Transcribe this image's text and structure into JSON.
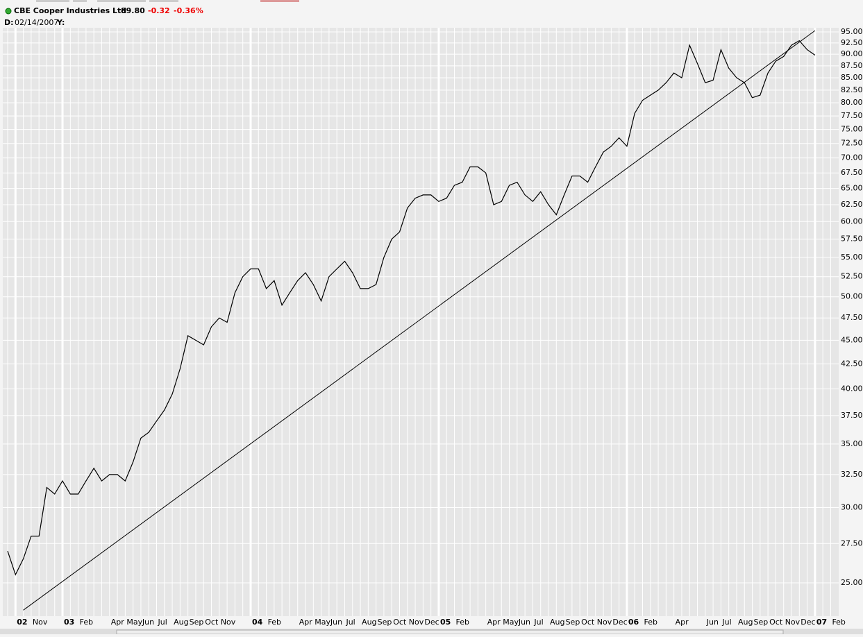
{
  "header": {
    "symbol_name": "CBE Cooper Industries Ltd",
    "last": "89.80",
    "change": "-0.32",
    "change_pct": "-0.36%",
    "date_label": "D:",
    "date": "02/14/2007",
    "y_label": "Y:"
  },
  "chart_data": {
    "type": "line",
    "log_scale": true,
    "grid": true,
    "categories": [
      null,
      "02",
      null,
      "Nov",
      null,
      null,
      null,
      "03",
      null,
      "Feb",
      null,
      null,
      null,
      "Apr",
      null,
      "May",
      null,
      "Jun",
      null,
      "Jul",
      null,
      "Aug",
      null,
      "Sep",
      null,
      "Oct",
      null,
      "Nov",
      null,
      null,
      null,
      "04",
      null,
      "Feb",
      null,
      null,
      null,
      "Apr",
      null,
      "May",
      null,
      "Jun",
      null,
      "Jul",
      null,
      "Aug",
      null,
      "Sep",
      null,
      "Oct",
      null,
      "Nov",
      null,
      "Dec",
      null,
      "05",
      null,
      "Feb",
      null,
      null,
      null,
      "Apr",
      null,
      "May",
      null,
      "Jun",
      null,
      "Jul",
      null,
      "Aug",
      null,
      "Sep",
      null,
      "Oct",
      null,
      "Nov",
      null,
      "Dec",
      null,
      "06",
      null,
      "Feb",
      null,
      null,
      null,
      "Apr",
      null,
      null,
      null,
      "Jun",
      null,
      "Jul",
      null,
      "Aug",
      null,
      "Sep",
      null,
      "Oct",
      null,
      "Nov",
      null,
      "Dec",
      null,
      "07",
      null,
      "Feb"
    ],
    "series": [
      {
        "color": "#000000",
        "values": [
          27,
          25.5,
          26.5,
          28,
          28,
          31.5,
          31,
          32,
          31,
          31,
          32,
          33,
          32,
          32.5,
          32.5,
          32,
          33.5,
          35.5,
          36,
          37,
          38,
          39.5,
          42,
          45.5,
          45,
          44.5,
          46.5,
          47.5,
          47,
          50.5,
          52.5,
          53.5,
          53.5,
          51,
          52,
          49,
          50.5,
          52,
          53,
          51.5,
          49.5,
          52.5,
          53.5,
          54.5,
          53,
          51,
          51,
          51.5,
          55,
          57.5,
          58.5,
          62,
          63.5,
          64,
          64,
          63,
          63.5,
          65.5,
          66,
          68.5,
          68.5,
          67.5,
          62.5,
          63,
          65.5,
          66,
          64,
          63,
          64.5,
          62.5,
          61,
          64,
          67,
          67,
          66,
          68.5,
          71,
          72,
          73.5,
          72,
          78,
          80.5,
          81.5,
          82.5,
          84,
          86,
          85,
          92,
          88,
          84,
          84.5,
          91,
          87,
          85,
          84,
          81,
          81.5,
          86,
          88.5,
          89.5,
          92,
          93,
          91,
          89.8,
          null,
          null
        ]
      }
    ],
    "trendline": {
      "x": [
        2,
        103
      ],
      "values": [
        23.4,
        95.3
      ],
      "color": "#000000"
    },
    "ylim": [
      23.06,
      95.96
    ],
    "yticks": [
      {
        "value": 25,
        "label": "25.00"
      },
      {
        "value": 27.5,
        "label": "27.50"
      },
      {
        "value": 30,
        "label": "30.00"
      },
      {
        "value": 32.5,
        "label": "32.50"
      },
      {
        "value": 35,
        "label": "35.00"
      },
      {
        "value": 37.5,
        "label": "37.50"
      },
      {
        "value": 40,
        "label": "40.00"
      },
      {
        "value": 42.5,
        "label": "42.50"
      },
      {
        "value": 45,
        "label": "45.00"
      },
      {
        "value": 47.5,
        "label": "47.50"
      },
      {
        "value": 50,
        "label": "50.00"
      },
      {
        "value": 52.5,
        "label": "52.50"
      },
      {
        "value": 55,
        "label": "55.00"
      },
      {
        "value": 57.5,
        "label": "57.50"
      },
      {
        "value": 60,
        "label": "60.00"
      },
      {
        "value": 62.5,
        "label": "62.50"
      },
      {
        "value": 65,
        "label": "65.00"
      },
      {
        "value": 67.5,
        "label": "67.50"
      },
      {
        "value": 70,
        "label": "70.00"
      },
      {
        "value": 72.5,
        "label": "72.50"
      },
      {
        "value": 75,
        "label": "75.00"
      },
      {
        "value": 77.5,
        "label": "77.50"
      },
      {
        "value": 80,
        "label": "80.00"
      },
      {
        "value": 82.5,
        "label": "82.50"
      },
      {
        "value": 85,
        "label": "85.00"
      },
      {
        "value": 87.5,
        "label": "87.50"
      },
      {
        "value": 90,
        "label": "90.00"
      },
      {
        "value": 92.5,
        "label": "92.50"
      },
      {
        "value": 95,
        "label": "95.00"
      }
    ]
  }
}
